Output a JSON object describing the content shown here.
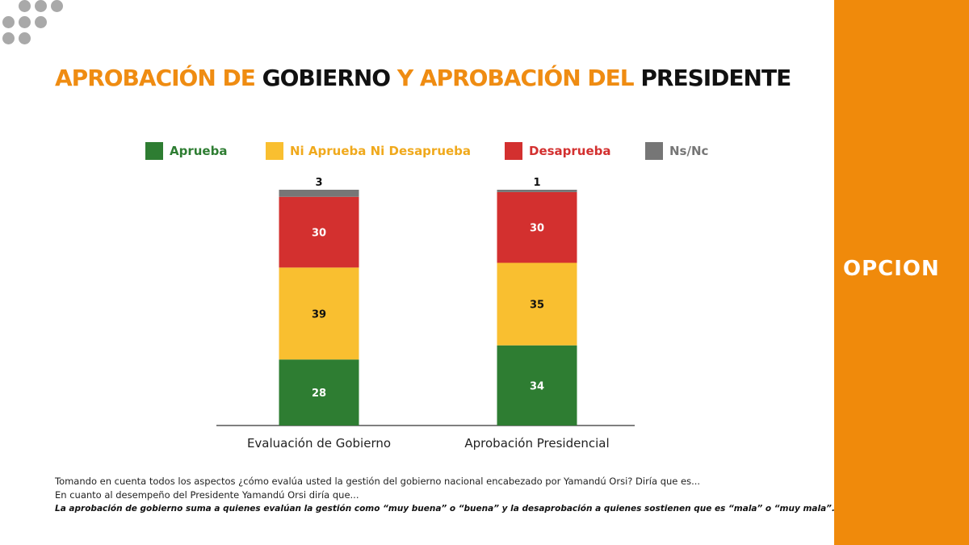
{
  "title": {
    "part1": "APROBACIÓN DE",
    "part2": "GOBIERNO",
    "part3": "Y APROBACIÓN DEL",
    "part4": "PRESIDENTE"
  },
  "brand": {
    "logo": "OPCION",
    "color": "#f08a0b"
  },
  "chart_data": {
    "type": "stacked-bar",
    "categories": [
      "Evaluación de Gobierno",
      "Aprobación Presidencial"
    ],
    "series": [
      {
        "name": "Aprueba",
        "color": "#2e7d32",
        "values": [
          28,
          34
        ]
      },
      {
        "name": "Ni Aprueba Ni Desaprueba",
        "color": "#f9bf30",
        "values": [
          39,
          35
        ]
      },
      {
        "name": "Desaprueba",
        "color": "#d3302f",
        "values": [
          30,
          30
        ]
      },
      {
        "name": "Ns/Nc",
        "color": "#767676",
        "values": [
          3,
          1
        ]
      }
    ],
    "ylim": [
      0,
      100
    ],
    "legend": "top",
    "grid": false
  },
  "notes": [
    "Tomando en cuenta todos los aspectos ¿cómo evalúa usted la gestión del gobierno nacional encabezado por Yamandú Orsi? Diría que es...",
    "En cuanto al desempeño del Presidente Yamandú Orsi diría que...",
    "La aprobación de gobierno suma a quienes evalúan la gestión como “muy buena” o “buena” y la desaprobación a quienes sostienen que es “mala” o “muy mala”."
  ]
}
